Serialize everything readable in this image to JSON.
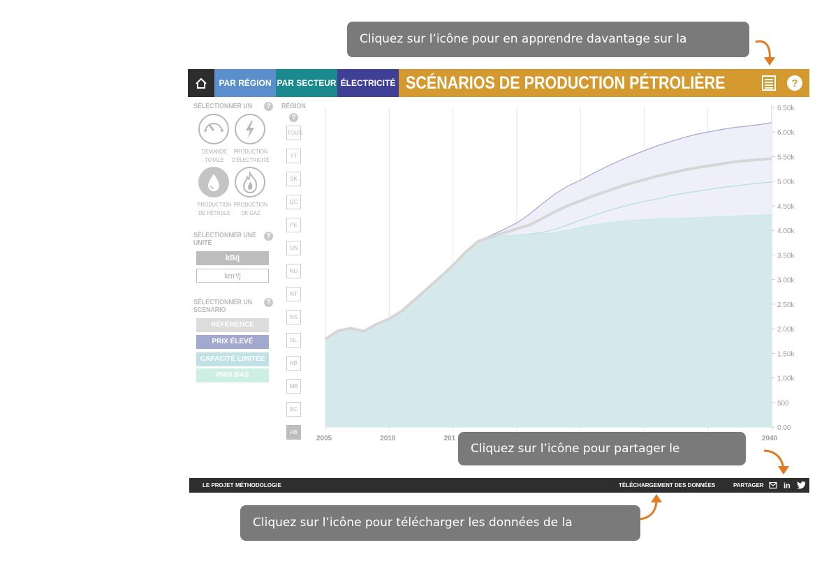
{
  "callouts": {
    "about": "Cliquez sur l’icône pour en apprendre davantage sur la visualisation",
    "share": "Cliquez sur l’icône pour partager le diagramme.",
    "download": "Cliquez sur l’icône pour télécharger les données de la visualisation."
  },
  "header": {
    "tabs": [
      {
        "label": "PAR RÉGION",
        "color": "#5b8fcb"
      },
      {
        "label": "PAR SECTEUR",
        "color": "#1b8a8e"
      },
      {
        "label": "ÉLECTRICITÉ",
        "color": "#3f3f95"
      }
    ],
    "title": "SCÉNARIOS DE PRODUCTION PÉTROLIÈRE",
    "accent_color": "#d49a2f",
    "icons": [
      "home-icon",
      "list-icon",
      "help-icon"
    ]
  },
  "sidebar": {
    "select_one_label": "SÉLECTIONNER UN",
    "region_label": "RÉGION",
    "products": [
      {
        "line1": "DEMANDE",
        "line2": "TOTALE",
        "icon": "gauge-icon",
        "active": false
      },
      {
        "line1": "PRODUCTION",
        "line2": "D’ÉLECTRICITÉ",
        "icon": "lightning-icon",
        "active": false
      },
      {
        "line1": "PRODUCTION",
        "line2": "DE PÉTROLE",
        "icon": "oil-drop-icon",
        "active": true
      },
      {
        "line1": "PRODUCTION",
        "line2": "DE GAZ",
        "icon": "flame-icon",
        "active": false
      }
    ],
    "unit_label_1": "SÉLECTIONNER UNE",
    "unit_label_2": "UNITÉ",
    "units": [
      {
        "label": "kB/j",
        "active": true
      },
      {
        "label": "km³/j",
        "active": false
      }
    ],
    "scenario_label_1": "SÉLECTIONNER UN",
    "scenario_label_2": "SCÉNARIO",
    "scenarios": [
      {
        "label": "RÉFÉRENCE",
        "color": "#dcdcdc"
      },
      {
        "label": "PRIX ÉLEVÉ",
        "color": "#a3a8cf"
      },
      {
        "label": "CAPACITÉ LIMITÉE",
        "color": "#bfe2e6"
      },
      {
        "label": "PRIX BAS",
        "color": "#cdeee3"
      }
    ],
    "regions": [
      "TOUS",
      "YT",
      "SK",
      "QC",
      "PE",
      "ON",
      "NU",
      "NT",
      "NS",
      "NL",
      "NB",
      "MB",
      "BC",
      "AB"
    ],
    "active_region": "AB"
  },
  "chart_data": {
    "type": "area",
    "x_ticks": [
      "2005",
      "2010",
      "201",
      "2040"
    ],
    "y_ticks": [
      "6.50k",
      "6.00k",
      "5.50k",
      "5.00k",
      "4.50k",
      "4.00k",
      "3.50k",
      "3.00k",
      "2.50k",
      "2.00k",
      "1.50k",
      "1.00k",
      "500",
      "0.00"
    ],
    "xlim": [
      2005,
      2040
    ],
    "ylim": [
      0,
      6500
    ],
    "x": [
      2005,
      2006,
      2007,
      2008,
      2009,
      2010,
      2011,
      2012,
      2013,
      2014,
      2015,
      2016,
      2017,
      2018,
      2019,
      2020,
      2021,
      2022,
      2023,
      2024,
      2025,
      2026,
      2027,
      2028,
      2029,
      2030,
      2031,
      2032,
      2033,
      2034,
      2035,
      2036,
      2037,
      2038,
      2039,
      2040
    ],
    "series": [
      {
        "color": "#a9acd6",
        "values": [
          1790,
          1960,
          2010,
          1950,
          2090,
          2200,
          2360,
          2590,
          2820,
          3050,
          3290,
          3560,
          3790,
          3900,
          4020,
          4150,
          4330,
          4540,
          4740,
          4900,
          5020,
          5160,
          5290,
          5410,
          5520,
          5620,
          5720,
          5800,
          5880,
          5950,
          6000,
          6050,
          6090,
          6120,
          6150,
          6190
        ]
      },
      {
        "color": "#d6d6d6",
        "values": [
          1790,
          1960,
          2010,
          1950,
          2090,
          2200,
          2360,
          2590,
          2820,
          3050,
          3290,
          3560,
          3780,
          3870,
          3950,
          4030,
          4110,
          4240,
          4380,
          4500,
          4600,
          4700,
          4790,
          4880,
          4960,
          5030,
          5100,
          5160,
          5220,
          5270,
          5310,
          5350,
          5390,
          5420,
          5440,
          5460
        ]
      },
      {
        "color": "#b2dfe3",
        "values": [
          1790,
          1960,
          2010,
          1950,
          2090,
          2200,
          2360,
          2590,
          2820,
          3050,
          3290,
          3560,
          3780,
          3850,
          3890,
          3900,
          3920,
          3960,
          4020,
          4110,
          4210,
          4300,
          4390,
          4460,
          4530,
          4590,
          4640,
          4700,
          4750,
          4790,
          4830,
          4870,
          4900,
          4930,
          4960,
          4980
        ]
      },
      {
        "color": "#c8ece0",
        "values": [
          1790,
          1960,
          2010,
          1950,
          2090,
          2200,
          2360,
          2590,
          2820,
          3050,
          3290,
          3560,
          3780,
          3850,
          3890,
          3900,
          3910,
          3930,
          3960,
          4000,
          4060,
          4110,
          4150,
          4180,
          4200,
          4220,
          4230,
          4240,
          4250,
          4260,
          4270,
          4280,
          4290,
          4300,
          4310,
          4320
        ]
      }
    ]
  },
  "footer": {
    "project": "LE PROJET",
    "method": "MÉTHODOLOGIE",
    "download": "TÉLÉCHARGEMENT DES DONNÉES",
    "share": "PARTAGER",
    "icons": [
      "mail-icon",
      "linkedin-icon",
      "twitter-icon"
    ]
  }
}
